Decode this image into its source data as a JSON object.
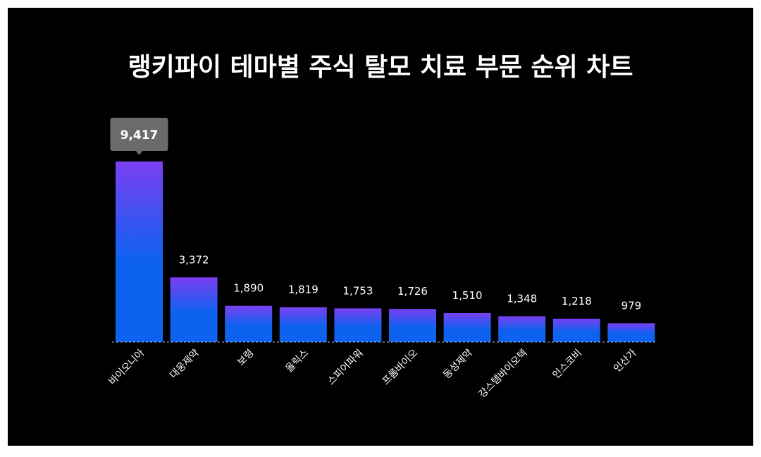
{
  "chart_data": {
    "type": "bar",
    "title": "랭키파이 테마별 주식 탈모 치료 부문 순위 차트",
    "categories": [
      "바이오니아",
      "대웅제약",
      "보령",
      "올릭스",
      "스피어파워",
      "프롬바이오",
      "동성제약",
      "강스템바이오텍",
      "인스코비",
      "인산가"
    ],
    "values": [
      9417,
      3372,
      1890,
      1819,
      1753,
      1726,
      1510,
      1348,
      1218,
      979
    ],
    "value_labels": [
      "9,417",
      "3,372",
      "1,890",
      "1,819",
      "1,753",
      "1,726",
      "1,510",
      "1,348",
      "1,218",
      "979"
    ],
    "highlight_index": 0,
    "ylim": [
      0,
      9417
    ],
    "grid": false,
    "legend": "none",
    "colors": {
      "background": "#000000",
      "bar_top": "#7b3ff2",
      "bar_bottom": "#0d62f0",
      "tooltip": "#6b6b6b",
      "text": "#ffffff",
      "baseline": "#bfbfbf"
    }
  }
}
